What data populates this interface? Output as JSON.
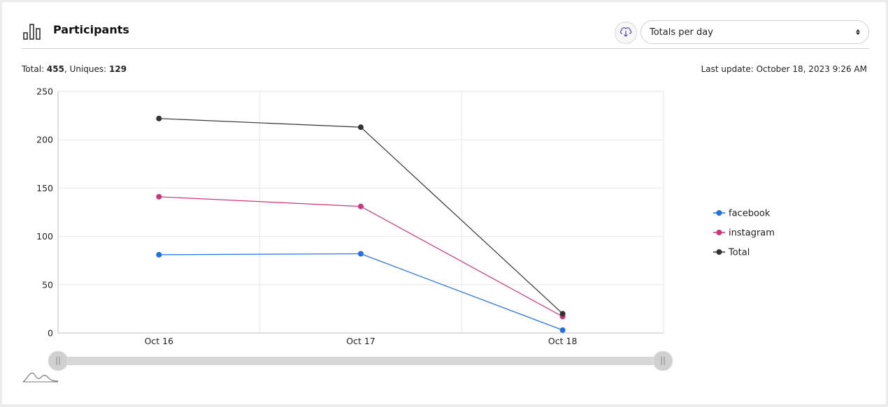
{
  "header": {
    "title": "Participants",
    "select_value": "Totals per day"
  },
  "summary": {
    "total_label": "Total: ",
    "total_value": "455",
    "uniques_label": ", Uniques: ",
    "uniques_value": "129",
    "last_update": "Last update: October 18, 2023 9:26 AM"
  },
  "colors": {
    "facebook": "#1f6fe6",
    "instagram": "#cc3577",
    "total": "#333333",
    "grid": "#e6e6e6",
    "slider": "#d7d7d7"
  },
  "icons": {
    "header": "bar-chart-icon",
    "download": "cloud-download-icon",
    "select": "sort-caret-icon",
    "minimap": "area-sparkline-icon"
  },
  "chart_data": {
    "type": "line",
    "categories": [
      "Oct 16",
      "Oct 17",
      "Oct 18"
    ],
    "yticks": [
      0,
      50,
      100,
      150,
      200,
      250
    ],
    "ylim": [
      0,
      250
    ],
    "grid": true,
    "legend_position": "right",
    "series": [
      {
        "name": "facebook",
        "values": [
          81,
          82,
          3
        ]
      },
      {
        "name": "instagram",
        "values": [
          141,
          131,
          17
        ]
      },
      {
        "name": "Total",
        "values": [
          222,
          213,
          20
        ]
      }
    ]
  }
}
